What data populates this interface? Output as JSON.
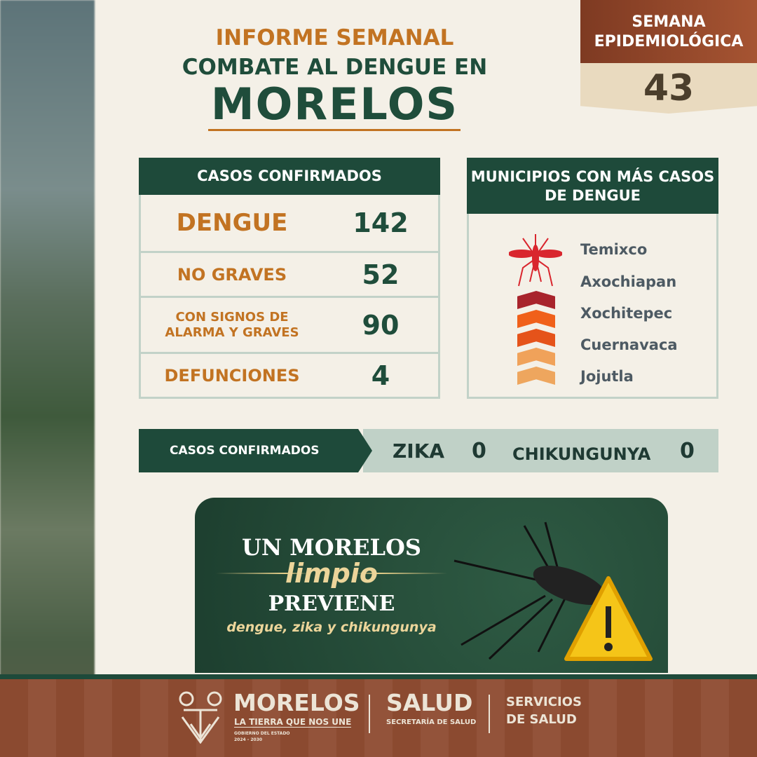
{
  "header": {
    "line1": "INFORME SEMANAL",
    "line2": "COMBATE AL DENGUE EN",
    "line3": "MORELOS"
  },
  "week": {
    "label": "SEMANA EPIDEMIOLÓGICA",
    "number": "43"
  },
  "confirmed": {
    "title": "CASOS CONFIRMADOS",
    "rows": [
      {
        "label": "DENGUE",
        "value": "142"
      },
      {
        "label": "NO GRAVES",
        "value": "52"
      },
      {
        "label": "CON SIGNOS DE ALARMA Y GRAVES",
        "value": "90"
      },
      {
        "label": "DEFUNCIONES",
        "value": "4"
      }
    ]
  },
  "municipios": {
    "title": "MUNICIPIOS CON MÁS CASOS DE DENGUE",
    "items": [
      "Temixco",
      "Axochiapan",
      "Xochitepec",
      "Cuernavaca",
      "Jojutla"
    ],
    "colors": [
      "#a8242c",
      "#f0601a",
      "#e5531a",
      "#f0a25a",
      "#eea65e"
    ]
  },
  "other": {
    "label": "CASOS CONFIRMADOS",
    "zika_label": "ZIKA",
    "zika": "0",
    "chik_label": "CHIKUNGUNYA",
    "chik": "0"
  },
  "banner": {
    "l1": "UN MORELOS",
    "l2": "limpio",
    "l3": "PREVIENE",
    "l4": "dengue, zika y chikungunya"
  },
  "footer": {
    "brand": "MORELOS",
    "tagline": "LA TIERRA QUE NOS UNE",
    "gov": "GOBIERNO DEL ESTADO",
    "years": "2024 - 2030",
    "salud": "SALUD",
    "secretaria": "SECRETARÍA DE SALUD",
    "servicios1": "SERVICIOS",
    "servicios2": "DE SALUD"
  }
}
